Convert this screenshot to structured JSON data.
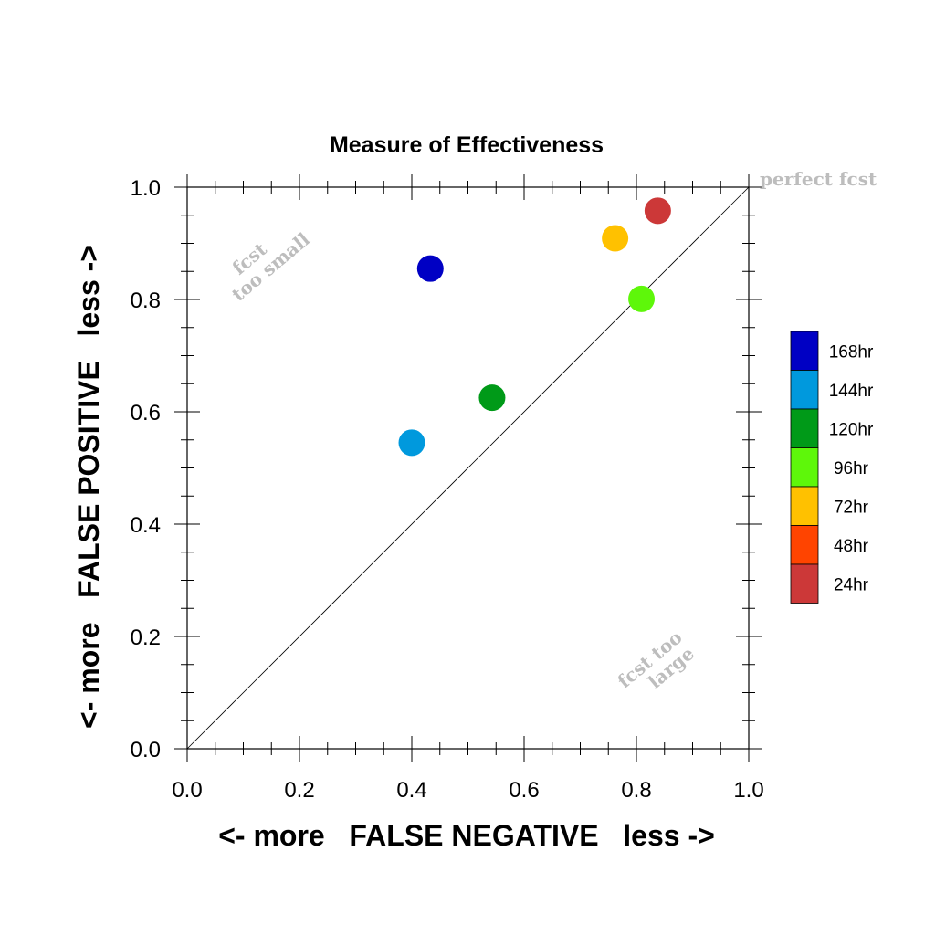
{
  "chart_data": {
    "type": "scatter",
    "title": "Measure of Effectiveness",
    "xlabel": "<- more   FALSE NEGATIVE   less ->",
    "ylabel": "<- more   FALSE POSITIVE   less ->",
    "xlim": [
      0.0,
      1.0
    ],
    "ylim": [
      0.0,
      1.0
    ],
    "xticks": [
      "0.0",
      "0.2",
      "0.4",
      "0.6",
      "0.8",
      "1.0"
    ],
    "yticks": [
      "0.0",
      "0.2",
      "0.4",
      "0.6",
      "0.8",
      "1.0"
    ],
    "grid": false,
    "diagonal_reference_line": true,
    "legend_placement": "right",
    "annotations": {
      "perfect": "perfect fcst",
      "small_line1": "fcst",
      "small_line2": "too small",
      "large_line1": "fcst too",
      "large_line2": "large"
    },
    "series": [
      {
        "name": "168hr",
        "color": "#0000c4",
        "x": 0.433,
        "y": 0.855
      },
      {
        "name": "144hr",
        "color": "#0099dd",
        "x": 0.4,
        "y": 0.545
      },
      {
        "name": "120hr",
        "color": "#009a18",
        "x": 0.543,
        "y": 0.625
      },
      {
        "name": "96hr",
        "color": "#5ef70a",
        "x": 0.809,
        "y": 0.801
      },
      {
        "name": "72hr",
        "color": "#ffc100",
        "x": 0.762,
        "y": 0.909
      },
      {
        "name": "48hr",
        "color": "#ff4400",
        "x": null,
        "y": null
      },
      {
        "name": "24hr",
        "color": "#cc3838",
        "x": 0.838,
        "y": 0.958
      }
    ]
  }
}
